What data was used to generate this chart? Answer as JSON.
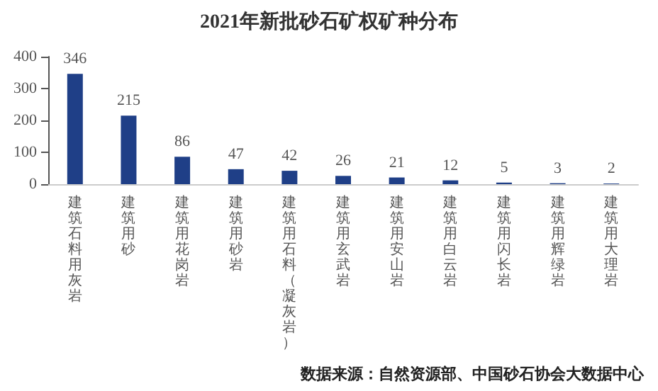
{
  "chart_data": {
    "type": "bar",
    "title": "2021年新批砂石矿权矿种分布",
    "categories": [
      "建筑石料用灰岩",
      "建筑用砂",
      "建筑用花岗岩",
      "建筑用砂岩",
      "建筑用石料（凝灰岩）",
      "建筑用玄武岩",
      "建筑用安山岩",
      "建筑用白云岩",
      "建筑用闪长岩",
      "建筑用辉绿岩",
      "建筑用大理岩"
    ],
    "values": [
      346,
      215,
      86,
      47,
      42,
      26,
      21,
      12,
      5,
      3,
      2
    ],
    "color": "#1f3f87",
    "ylim": [
      0,
      400
    ],
    "yticks": [
      0,
      100,
      200,
      300,
      400
    ],
    "grid": false,
    "data_labels": true,
    "annotations": [
      "数据来源：自然资源部、中国砂石协会大数据中心"
    ]
  }
}
